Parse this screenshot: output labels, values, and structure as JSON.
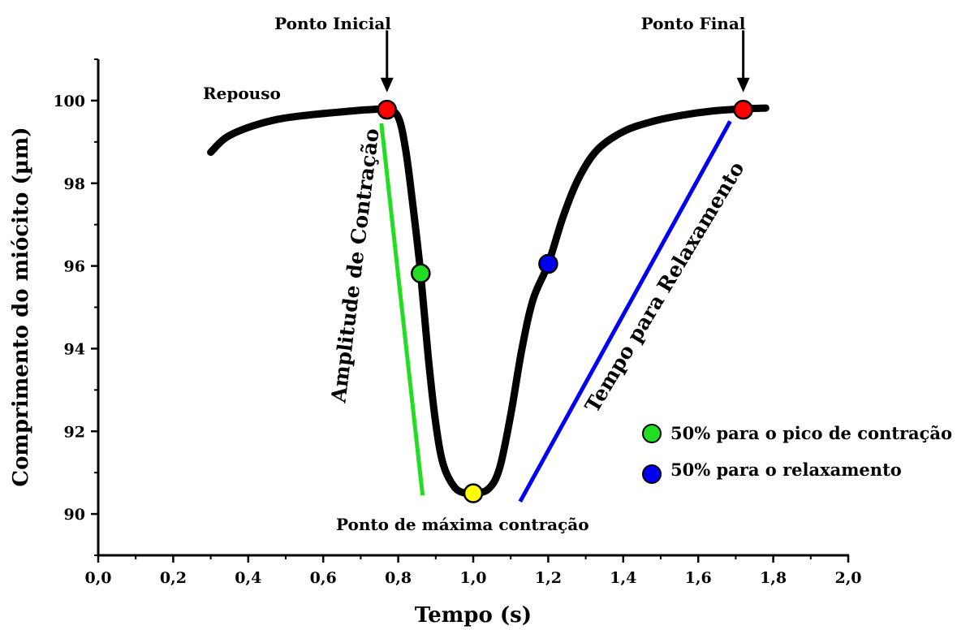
{
  "chart_data": {
    "type": "line",
    "title": "",
    "xlabel": "Tempo (s)",
    "ylabel": "Comprimento do miócito (µm)",
    "xlim": [
      0.0,
      2.0
    ],
    "ylim": [
      89.0,
      101.0
    ],
    "xticks": [
      0.0,
      0.2,
      0.4,
      0.6,
      0.8,
      1.0,
      1.2,
      1.4,
      1.6,
      1.8,
      2.0
    ],
    "xtick_labels": [
      "0,0",
      "0,2",
      "0,4",
      "0,6",
      "0,8",
      "1,0",
      "1,2",
      "1,4",
      "1,6",
      "1,8",
      "2,0"
    ],
    "yticks": [
      90,
      92,
      94,
      96,
      98,
      100
    ],
    "ytick_labels": [
      "90",
      "92",
      "94",
      "96",
      "98",
      "100"
    ],
    "grid": false,
    "series": [
      {
        "color": "#000000",
        "x": [
          0.3,
          0.34,
          0.4,
          0.48,
          0.56,
          0.64,
          0.72,
          0.77,
          0.8,
          0.82,
          0.84,
          0.86,
          0.88,
          0.9,
          0.92,
          0.95,
          0.98,
          1.0,
          1.04,
          1.07,
          1.1,
          1.13,
          1.16,
          1.2,
          1.24,
          1.28,
          1.33,
          1.4,
          1.48,
          1.56,
          1.64,
          1.72,
          1.78
        ],
        "y": [
          98.75,
          99.1,
          99.35,
          99.55,
          99.65,
          99.72,
          99.78,
          99.78,
          99.6,
          98.8,
          97.4,
          95.8,
          93.8,
          92.2,
          91.2,
          90.65,
          90.5,
          90.5,
          90.6,
          91.1,
          92.4,
          94.0,
          95.2,
          96.05,
          97.2,
          98.1,
          98.8,
          99.25,
          99.5,
          99.65,
          99.75,
          99.8,
          99.82
        ]
      }
    ],
    "markers": [
      {
        "x": 0.77,
        "y": 99.78,
        "color": "#ff0000"
      },
      {
        "x": 0.86,
        "y": 95.82,
        "color": "#22dd22"
      },
      {
        "x": 1.0,
        "y": 90.5,
        "color": "#ffff00"
      },
      {
        "x": 1.2,
        "y": 96.05,
        "color": "#0000ee"
      },
      {
        "x": 1.72,
        "y": 99.78,
        "color": "#ff0000"
      }
    ],
    "guide_lines": [
      {
        "x1": 0.755,
        "y1": 99.45,
        "x2": 0.865,
        "y2": 90.45,
        "color": "#22dd22"
      },
      {
        "x1": 1.125,
        "y1": 90.3,
        "x2": 1.685,
        "y2": 99.5,
        "color": "#0000ee"
      }
    ],
    "arrows": [
      {
        "x": 0.77,
        "y_from": 101.7,
        "y_to": 100.2
      },
      {
        "x": 1.72,
        "y_from": 101.7,
        "y_to": 100.2
      }
    ],
    "annotations": {
      "ponto_inicial": "Ponto Inicial",
      "ponto_final": "Ponto Final",
      "repouso": "Repouso",
      "maxima": "Ponto de máxima contração",
      "amplitude": "Amplitude de Contração",
      "relaxamento": "Tempo para Relaxamento"
    },
    "legend": {
      "placement": "right",
      "entries": [
        {
          "label": "50% para o pico de contração",
          "color": "#22dd22"
        },
        {
          "label": "50% para o relaxamento",
          "color": "#0000ee"
        }
      ]
    }
  }
}
